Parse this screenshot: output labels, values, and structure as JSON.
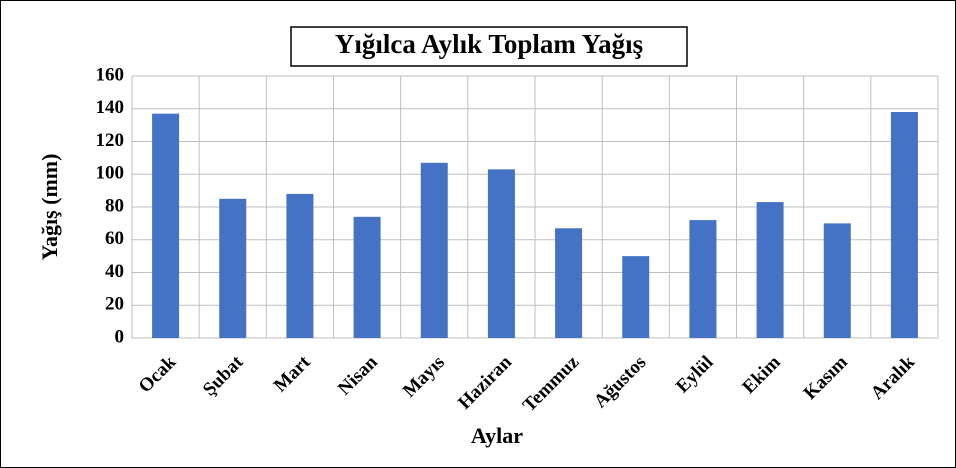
{
  "chart_data": {
    "type": "bar",
    "title": "Yığılca Aylık Toplam Yağış",
    "x_label": "Aylar",
    "y_label": "Yağış (mm)",
    "categories": [
      "Ocak",
      "Şubat",
      "Mart",
      "Nisan",
      "Mayıs",
      "Haziran",
      "Temmuz",
      "Ağustos",
      "Eylül",
      "Ekim",
      "Kasım",
      "Aralık"
    ],
    "values": [
      137,
      85,
      88,
      74,
      107,
      103,
      67,
      50,
      72,
      83,
      70,
      138
    ],
    "color": "#4472c4",
    "ylim": [
      0,
      160
    ],
    "yticks": [
      0,
      20,
      40,
      60,
      80,
      100,
      120,
      140,
      160
    ],
    "grid": true
  }
}
